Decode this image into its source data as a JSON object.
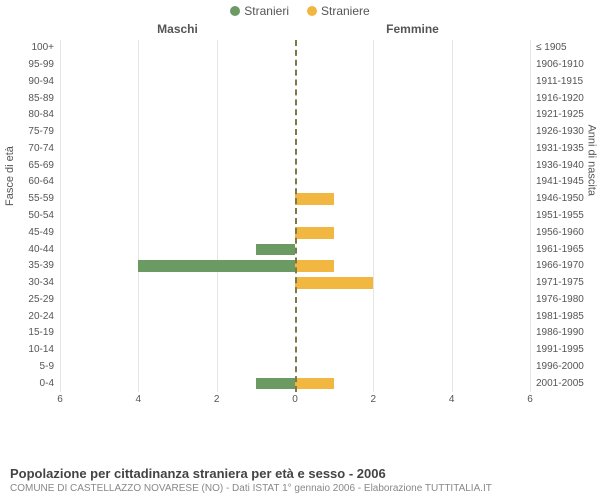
{
  "legend": {
    "male": {
      "label": "Stranieri",
      "color": "#6b9a63"
    },
    "female": {
      "label": "Straniere",
      "color": "#f2b741"
    }
  },
  "headers": {
    "male": "Maschi",
    "female": "Femmine"
  },
  "axis_titles": {
    "left": "Fasce di età",
    "right": "Anni di nascita"
  },
  "chart": {
    "type": "population-pyramid",
    "xmax": 6,
    "xtick_step": 2,
    "grid_color": "#e5e5e5",
    "center_line_color": "#7a7a4a",
    "bar_width": 0.7,
    "rows": [
      {
        "age": "100+",
        "birth": "≤ 1905",
        "male": 0,
        "female": 0
      },
      {
        "age": "95-99",
        "birth": "1906-1910",
        "male": 0,
        "female": 0
      },
      {
        "age": "90-94",
        "birth": "1911-1915",
        "male": 0,
        "female": 0
      },
      {
        "age": "85-89",
        "birth": "1916-1920",
        "male": 0,
        "female": 0
      },
      {
        "age": "80-84",
        "birth": "1921-1925",
        "male": 0,
        "female": 0
      },
      {
        "age": "75-79",
        "birth": "1926-1930",
        "male": 0,
        "female": 0
      },
      {
        "age": "70-74",
        "birth": "1931-1935",
        "male": 0,
        "female": 0
      },
      {
        "age": "65-69",
        "birth": "1936-1940",
        "male": 0,
        "female": 0
      },
      {
        "age": "60-64",
        "birth": "1941-1945",
        "male": 0,
        "female": 0
      },
      {
        "age": "55-59",
        "birth": "1946-1950",
        "male": 0,
        "female": 1
      },
      {
        "age": "50-54",
        "birth": "1951-1955",
        "male": 0,
        "female": 0
      },
      {
        "age": "45-49",
        "birth": "1956-1960",
        "male": 0,
        "female": 1
      },
      {
        "age": "40-44",
        "birth": "1961-1965",
        "male": 1,
        "female": 0
      },
      {
        "age": "35-39",
        "birth": "1966-1970",
        "male": 4,
        "female": 1
      },
      {
        "age": "30-34",
        "birth": "1971-1975",
        "male": 0,
        "female": 2
      },
      {
        "age": "25-29",
        "birth": "1976-1980",
        "male": 0,
        "female": 0
      },
      {
        "age": "20-24",
        "birth": "1981-1985",
        "male": 0,
        "female": 0
      },
      {
        "age": "15-19",
        "birth": "1986-1990",
        "male": 0,
        "female": 0
      },
      {
        "age": "10-14",
        "birth": "1991-1995",
        "male": 0,
        "female": 0
      },
      {
        "age": "5-9",
        "birth": "1996-2000",
        "male": 0,
        "female": 0
      },
      {
        "age": "0-4",
        "birth": "2001-2005",
        "male": 1,
        "female": 1
      }
    ],
    "xticks": [
      6,
      4,
      2,
      0,
      2,
      4,
      6
    ]
  },
  "footer": {
    "title": "Popolazione per cittadinanza straniera per età e sesso - 2006",
    "sub": "COMUNE DI CASTELLAZZO NOVARESE (NO) - Dati ISTAT 1° gennaio 2006 - Elaborazione TUTTITALIA.IT"
  }
}
